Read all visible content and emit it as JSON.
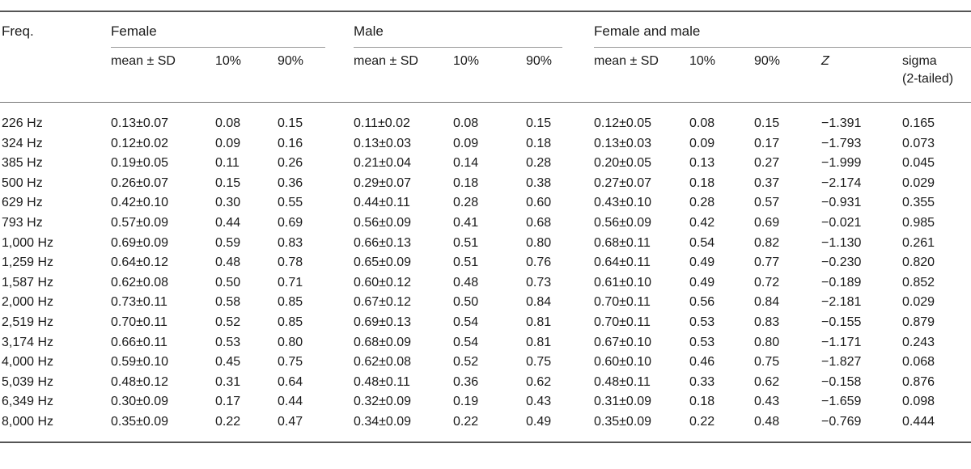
{
  "table": {
    "freq_header": "Freq.",
    "groups": [
      "Female",
      "Male",
      "Female and male"
    ],
    "sub_headers": {
      "female": [
        "mean ± SD",
        "10%",
        "90%"
      ],
      "male": [
        "mean ± SD",
        "10%",
        "90%"
      ],
      "both": [
        "mean ± SD",
        "10%",
        "90%"
      ],
      "z": "Z",
      "sigma": "sigma\n(2-tailed)"
    },
    "rows": [
      {
        "freq": "226 Hz",
        "f_mean": "0.13±0.07",
        "f_10": "0.08",
        "f_90": "0.15",
        "m_mean": "0.11±0.02",
        "m_10": "0.08",
        "m_90": "0.15",
        "b_mean": "0.12±0.05",
        "b_10": "0.08",
        "b_90": "0.15",
        "z": "−1.391",
        "sigma": "0.165"
      },
      {
        "freq": "324 Hz",
        "f_mean": "0.12±0.02",
        "f_10": "0.09",
        "f_90": "0.16",
        "m_mean": "0.13±0.03",
        "m_10": "0.09",
        "m_90": "0.18",
        "b_mean": "0.13±0.03",
        "b_10": "0.09",
        "b_90": "0.17",
        "z": "−1.793",
        "sigma": "0.073"
      },
      {
        "freq": "385 Hz",
        "f_mean": "0.19±0.05",
        "f_10": "0.11",
        "f_90": "0.26",
        "m_mean": "0.21±0.04",
        "m_10": "0.14",
        "m_90": "0.28",
        "b_mean": "0.20±0.05",
        "b_10": "0.13",
        "b_90": "0.27",
        "z": "−1.999",
        "sigma": "0.045"
      },
      {
        "freq": "500 Hz",
        "f_mean": "0.26±0.07",
        "f_10": "0.15",
        "f_90": "0.36",
        "m_mean": "0.29±0.07",
        "m_10": "0.18",
        "m_90": "0.38",
        "b_mean": "0.27±0.07",
        "b_10": "0.18",
        "b_90": "0.37",
        "z": "−2.174",
        "sigma": "0.029"
      },
      {
        "freq": "629 Hz",
        "f_mean": "0.42±0.10",
        "f_10": "0.30",
        "f_90": "0.55",
        "m_mean": "0.44±0.11",
        "m_10": "0.28",
        "m_90": "0.60",
        "b_mean": "0.43±0.10",
        "b_10": "0.28",
        "b_90": "0.57",
        "z": "−0.931",
        "sigma": "0.355"
      },
      {
        "freq": "793 Hz",
        "f_mean": "0.57±0.09",
        "f_10": "0.44",
        "f_90": "0.69",
        "m_mean": "0.56±0.09",
        "m_10": "0.41",
        "m_90": "0.68",
        "b_mean": "0.56±0.09",
        "b_10": "0.42",
        "b_90": "0.69",
        "z": "−0.021",
        "sigma": "0.985"
      },
      {
        "freq": "1,000 Hz",
        "f_mean": "0.69±0.09",
        "f_10": "0.59",
        "f_90": "0.83",
        "m_mean": "0.66±0.13",
        "m_10": "0.51",
        "m_90": "0.80",
        "b_mean": "0.68±0.11",
        "b_10": "0.54",
        "b_90": "0.82",
        "z": "−1.130",
        "sigma": "0.261"
      },
      {
        "freq": "1,259 Hz",
        "f_mean": "0.64±0.12",
        "f_10": "0.48",
        "f_90": "0.78",
        "m_mean": "0.65±0.09",
        "m_10": "0.51",
        "m_90": "0.76",
        "b_mean": "0.64±0.11",
        "b_10": "0.49",
        "b_90": "0.77",
        "z": "−0.230",
        "sigma": "0.820"
      },
      {
        "freq": "1,587 Hz",
        "f_mean": "0.62±0.08",
        "f_10": "0.50",
        "f_90": "0.71",
        "m_mean": "0.60±0.12",
        "m_10": "0.48",
        "m_90": "0.73",
        "b_mean": "0.61±0.10",
        "b_10": "0.49",
        "b_90": "0.72",
        "z": "−0.189",
        "sigma": "0.852"
      },
      {
        "freq": "2,000 Hz",
        "f_mean": "0.73±0.11",
        "f_10": "0.58",
        "f_90": "0.85",
        "m_mean": "0.67±0.12",
        "m_10": "0.50",
        "m_90": "0.84",
        "b_mean": "0.70±0.11",
        "b_10": "0.56",
        "b_90": "0.84",
        "z": "−2.181",
        "sigma": "0.029"
      },
      {
        "freq": "2,519 Hz",
        "f_mean": "0.70±0.11",
        "f_10": "0.52",
        "f_90": "0.85",
        "m_mean": "0.69±0.13",
        "m_10": "0.54",
        "m_90": "0.81",
        "b_mean": "0.70±0.11",
        "b_10": "0.53",
        "b_90": "0.83",
        "z": "−0.155",
        "sigma": "0.879"
      },
      {
        "freq": "3,174 Hz",
        "f_mean": "0.66±0.11",
        "f_10": "0.53",
        "f_90": "0.80",
        "m_mean": "0.68±0.09",
        "m_10": "0.54",
        "m_90": "0.81",
        "b_mean": "0.67±0.10",
        "b_10": "0.53",
        "b_90": "0.80",
        "z": "−1.171",
        "sigma": "0.243"
      },
      {
        "freq": "4,000 Hz",
        "f_mean": "0.59±0.10",
        "f_10": "0.45",
        "f_90": "0.75",
        "m_mean": "0.62±0.08",
        "m_10": "0.52",
        "m_90": "0.75",
        "b_mean": "0.60±0.10",
        "b_10": "0.46",
        "b_90": "0.75",
        "z": "−1.827",
        "sigma": "0.068"
      },
      {
        "freq": "5,039 Hz",
        "f_mean": "0.48±0.12",
        "f_10": "0.31",
        "f_90": "0.64",
        "m_mean": "0.48±0.11",
        "m_10": "0.36",
        "m_90": "0.62",
        "b_mean": "0.48±0.11",
        "b_10": "0.33",
        "b_90": "0.62",
        "z": "−0.158",
        "sigma": "0.876"
      },
      {
        "freq": "6,349 Hz",
        "f_mean": "0.30±0.09",
        "f_10": "0.17",
        "f_90": "0.44",
        "m_mean": "0.32±0.09",
        "m_10": "0.19",
        "m_90": "0.43",
        "b_mean": "0.31±0.09",
        "b_10": "0.18",
        "b_90": "0.43",
        "z": "−1.659",
        "sigma": "0.098"
      },
      {
        "freq": "8,000 Hz",
        "f_mean": "0.35±0.09",
        "f_10": "0.22",
        "f_90": "0.47",
        "m_mean": "0.34±0.09",
        "m_10": "0.22",
        "m_90": "0.49",
        "b_mean": "0.35±0.09",
        "b_10": "0.22",
        "b_90": "0.48",
        "z": "−0.769",
        "sigma": "0.444"
      }
    ]
  }
}
